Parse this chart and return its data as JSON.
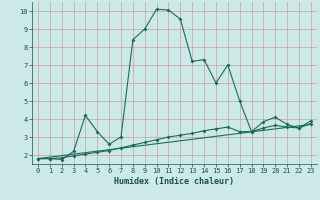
{
  "xlabel": "Humidex (Indice chaleur)",
  "bg_color": "#cce9e8",
  "grid_color": "#c8a0a0",
  "line_color": "#1a6b5a",
  "xlim": [
    -0.5,
    23.5
  ],
  "ylim": [
    1.5,
    10.5
  ],
  "xticks": [
    0,
    1,
    2,
    3,
    4,
    5,
    6,
    7,
    8,
    9,
    10,
    11,
    12,
    13,
    14,
    15,
    16,
    17,
    18,
    19,
    20,
    21,
    22,
    23
  ],
  "yticks": [
    2,
    3,
    4,
    5,
    6,
    7,
    8,
    9,
    10
  ],
  "line1_x": [
    0,
    1,
    2,
    3,
    4,
    5,
    6,
    7,
    8,
    9,
    10,
    11,
    12,
    13,
    14,
    15,
    16,
    17,
    18,
    19,
    20,
    21,
    22,
    23
  ],
  "line1_y": [
    1.8,
    1.8,
    1.75,
    2.2,
    4.2,
    3.3,
    2.6,
    3.0,
    8.4,
    9.0,
    10.1,
    10.05,
    9.55,
    7.2,
    7.3,
    6.0,
    7.0,
    5.0,
    3.3,
    3.85,
    4.1,
    3.7,
    3.5,
    3.9
  ],
  "line2_x": [
    0,
    1,
    2,
    3,
    4,
    5,
    6,
    7,
    8,
    9,
    10,
    11,
    12,
    13,
    14,
    15,
    16,
    17,
    18,
    19,
    20,
    21,
    22,
    23
  ],
  "line2_y": [
    1.8,
    1.8,
    1.85,
    1.95,
    2.05,
    2.15,
    2.25,
    2.4,
    2.55,
    2.7,
    2.85,
    3.0,
    3.1,
    3.2,
    3.35,
    3.45,
    3.55,
    3.3,
    3.3,
    3.5,
    3.65,
    3.55,
    3.5,
    3.75
  ],
  "line3_x": [
    0,
    23
  ],
  "line3_y": [
    1.8,
    3.7
  ],
  "xlabel_fontsize": 6,
  "tick_fontsize": 5
}
